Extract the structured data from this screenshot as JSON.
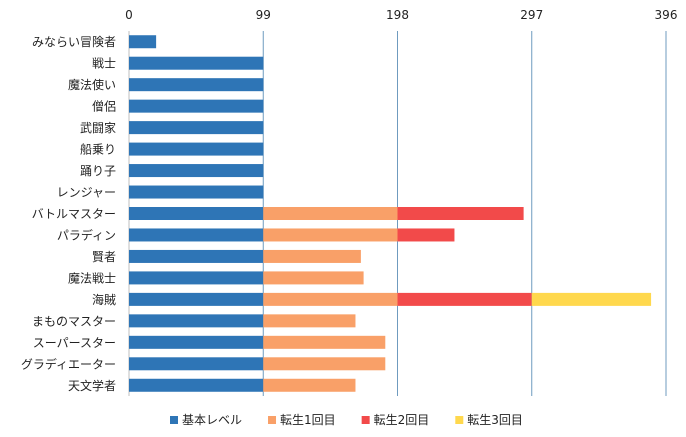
{
  "chart_data": {
    "type": "bar",
    "orientation": "horizontal",
    "stacked": true,
    "title": "",
    "xlabel": "",
    "ylabel": "",
    "xlim": [
      0,
      396
    ],
    "xticks": [
      "0",
      "99",
      "198",
      "297",
      "396"
    ],
    "grid": true,
    "legend_position": "bottom",
    "categories": [
      "みならい冒険者",
      "戦士",
      "魔法使い",
      "僧侶",
      "武闘家",
      "船乗り",
      "踊り子",
      "レンジャー",
      "バトルマスター",
      "パラディン",
      "賢者",
      "魔法戦士",
      "海賊",
      "まものマスター",
      "スーパースター",
      "グラディエーター",
      "天文学者"
    ],
    "series": [
      {
        "name": "基本レベル",
        "color": "#2e75b6",
        "values": [
          20,
          99,
          99,
          99,
          99,
          99,
          99,
          99,
          99,
          99,
          99,
          99,
          99,
          99,
          99,
          99,
          99
        ]
      },
      {
        "name": "転生1回目",
        "color": "#f9a068",
        "values": [
          0,
          0,
          0,
          0,
          0,
          0,
          0,
          0,
          99,
          99,
          72,
          74,
          99,
          68,
          90,
          90,
          68
        ]
      },
      {
        "name": "転生2回目",
        "color": "#f24a4a",
        "values": [
          0,
          0,
          0,
          0,
          0,
          0,
          0,
          0,
          93,
          42,
          0,
          0,
          99,
          0,
          0,
          0,
          0
        ]
      },
      {
        "name": "転生3回目",
        "color": "#ffd84d",
        "values": [
          0,
          0,
          0,
          0,
          0,
          0,
          0,
          0,
          0,
          0,
          0,
          0,
          88,
          0,
          0,
          0,
          0
        ]
      }
    ]
  }
}
